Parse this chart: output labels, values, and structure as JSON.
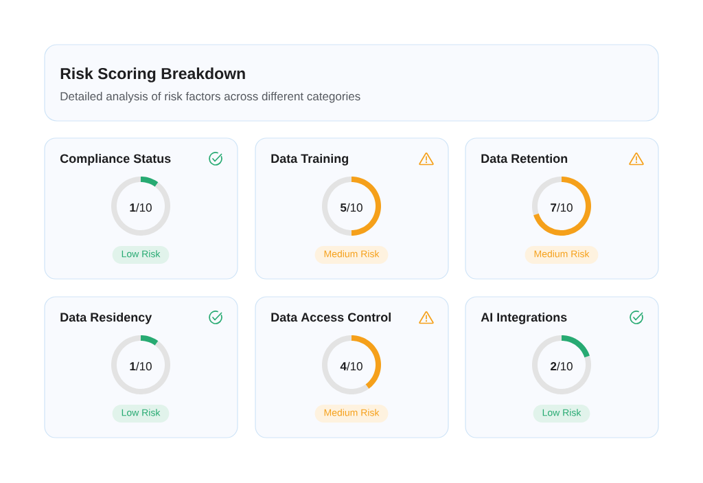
{
  "chart_data": [
    {
      "type": "other",
      "title": "Risk Scoring Breakdown",
      "subtitle": "Detailed analysis of risk factors across different categories"
    },
    {
      "type": "donut",
      "title": "Compliance Status",
      "categories": [
        null,
        null
      ],
      "values": [
        10,
        90
      ],
      "colors": [
        "#27AA72",
        "#E3E3E3"
      ],
      "annotations": [
        "**1**/10",
        "Low Risk"
      ]
    },
    {
      "type": "donut",
      "title": "Data Training",
      "categories": [
        null,
        null
      ],
      "values": [
        50,
        50
      ],
      "colors": [
        "#F5A01A",
        "#E3E3E3"
      ],
      "annotations": [
        "**5**/10",
        "Medium Risk"
      ]
    },
    {
      "type": "donut",
      "title": "Data Retention",
      "categories": [
        null,
        null
      ],
      "values": [
        70,
        30
      ],
      "colors": [
        "#F5A01A",
        "#E3E3E3"
      ],
      "annotations": [
        "**7**/10",
        "Medium Risk"
      ]
    },
    {
      "type": "donut",
      "title": "Data Residency",
      "categories": [
        null,
        null
      ],
      "values": [
        10,
        90
      ],
      "colors": [
        "#27AA72",
        "#E3E3E3"
      ],
      "annotations": [
        "**1**/10",
        "Low Risk"
      ]
    },
    {
      "type": "donut",
      "title": "Data Access Control",
      "categories": [
        null,
        null
      ],
      "values": [
        40,
        60
      ],
      "colors": [
        "#F5A01A",
        "#E3E3E3"
      ],
      "annotations": [
        "**4**/10",
        "Medium Risk"
      ]
    },
    {
      "type": "donut",
      "title": "AI Integrations",
      "categories": [
        null,
        null
      ],
      "values": [
        20,
        80
      ],
      "colors": [
        "#27AA72",
        "#E3E3E3"
      ],
      "annotations": [
        "**2**/10",
        "Low Risk"
      ]
    }
  ]
}
